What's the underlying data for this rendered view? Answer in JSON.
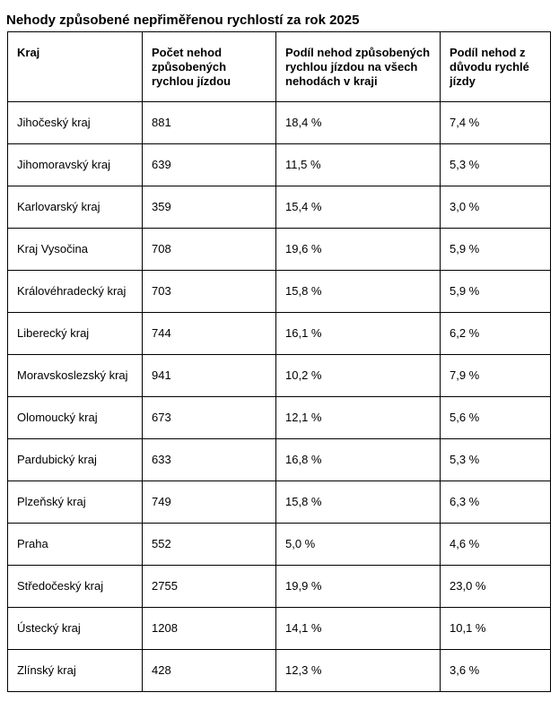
{
  "page": {
    "title": "Nehody způsobené nepřiměřenou rychlostí za rok 2025"
  },
  "table": {
    "columns": [
      "Kraj",
      "Počet nehod způsobených rychlou jízdou",
      "Podíl nehod způsobených rychlou jízdou na všech nehodách v kraji",
      "Podíl nehod z důvodu rychlé jízdy"
    ],
    "rows": [
      [
        "Jihočeský kraj",
        "881",
        "18,4 %",
        "7,4 %"
      ],
      [
        "Jihomoravský kraj",
        "639",
        "11,5 %",
        "5,3 %"
      ],
      [
        "Karlovarský kraj",
        "359",
        "15,4 %",
        "3,0 %"
      ],
      [
        "Kraj Vysočina",
        "708",
        "19,6 %",
        "5,9 %"
      ],
      [
        "Královéhradecký kraj",
        "703",
        "15,8 %",
        "5,9 %"
      ],
      [
        "Liberecký kraj",
        "744",
        "16,1 %",
        "6,2 %"
      ],
      [
        "Moravskoslezský kraj",
        "941",
        "10,2 %",
        "7,9 %"
      ],
      [
        "Olomoucký kraj",
        "673",
        "12,1 %",
        "5,6 %"
      ],
      [
        "Pardubický kraj",
        "633",
        "16,8 %",
        "5,3 %"
      ],
      [
        "Plzeňský kraj",
        "749",
        "15,8 %",
        "6,3 %"
      ],
      [
        "Praha",
        "552",
        "5,0 %",
        "4,6 %"
      ],
      [
        "Středočeský kraj",
        "2755",
        "19,9 %",
        "23,0 %"
      ],
      [
        "Ústecký kraj",
        "1208",
        "14,1 %",
        "10,1 %"
      ],
      [
        "Zlínský kraj",
        "428",
        "12,3 %",
        "3,6 %"
      ]
    ],
    "cell_names": [
      "region-cell",
      "count-cell",
      "share-of-all-accidents-cell",
      "share-speed-reason-cell"
    ]
  }
}
